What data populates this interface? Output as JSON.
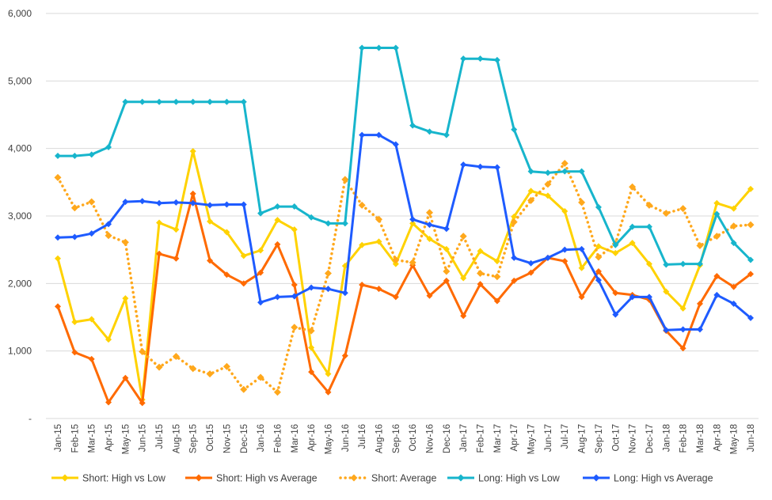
{
  "chart_data": {
    "type": "line",
    "title": "",
    "xlabel": "",
    "ylabel": "",
    "ylim": [
      0,
      6000
    ],
    "yticks": [
      0,
      1000,
      2000,
      3000,
      4000,
      5000,
      6000
    ],
    "ytick_labels": [
      "-",
      "1,000",
      "2,000",
      "3,000",
      "4,000",
      "5,000",
      "6,000"
    ],
    "grid": true,
    "legend_position": "bottom",
    "categories": [
      "Jan-15",
      "Feb-15",
      "Mar-15",
      "Apr-15",
      "May-15",
      "Jun-15",
      "Jul-15",
      "Aug-15",
      "Sep-15",
      "Oct-15",
      "Nov-15",
      "Dec-15",
      "Jan-16",
      "Feb-16",
      "Mar-16",
      "Apr-16",
      "May-16",
      "Jun-16",
      "Jul-16",
      "Aug-16",
      "Sep-16",
      "Oct-16",
      "Nov-16",
      "Dec-16",
      "Jan-17",
      "Feb-17",
      "Mar-17",
      "Apr-17",
      "May-17",
      "Jun-17",
      "Jul-17",
      "Aug-17",
      "Sep-17",
      "Oct-17",
      "Nov-17",
      "Dec-17",
      "Jan-18",
      "Feb-18",
      "Mar-18",
      "Apr-18",
      "May-18",
      "Jun-18"
    ],
    "series": [
      {
        "name": "Short: High vs Low",
        "color": "#FFD200",
        "style": "solid",
        "values": [
          2370,
          1430,
          1470,
          1170,
          1780,
          280,
          2900,
          2800,
          3960,
          2920,
          2760,
          2410,
          2490,
          2940,
          2800,
          1050,
          660,
          2260,
          2570,
          2620,
          2290,
          2890,
          2660,
          2510,
          2080,
          2480,
          2330,
          2990,
          3370,
          3300,
          3070,
          2230,
          2550,
          2450,
          2600,
          2290,
          1880,
          1630,
          2270,
          3190,
          3110,
          3400
        ]
      },
      {
        "name": "Short: High vs Average",
        "color": "#FF6A00",
        "style": "solid",
        "values": [
          1660,
          980,
          880,
          240,
          600,
          230,
          2440,
          2370,
          3330,
          2340,
          2130,
          2000,
          2160,
          2580,
          1980,
          690,
          390,
          930,
          1980,
          1920,
          1800,
          2270,
          1820,
          2040,
          1520,
          1990,
          1740,
          2040,
          2160,
          2380,
          2330,
          1800,
          2180,
          1860,
          1830,
          1760,
          1300,
          1040,
          1700,
          2110,
          1950,
          2140
        ]
      },
      {
        "name": "Short: Average",
        "color": "#FFA81C",
        "style": "dotted",
        "values": [
          3570,
          3120,
          3210,
          2710,
          2610,
          990,
          760,
          920,
          740,
          660,
          770,
          430,
          610,
          390,
          1350,
          1300,
          2150,
          3540,
          3160,
          2950,
          2350,
          2310,
          3050,
          2180,
          2700,
          2150,
          2100,
          2910,
          3230,
          3470,
          3780,
          3200,
          2390,
          2590,
          3430,
          3160,
          3040,
          3110,
          2560,
          2700,
          2850,
          2870
        ]
      },
      {
        "name": "Long: High vs Low",
        "color": "#17B5CC",
        "style": "solid",
        "values": [
          3890,
          3890,
          3910,
          4020,
          4690,
          4690,
          4690,
          4690,
          4690,
          4690,
          4690,
          4690,
          3040,
          3140,
          3140,
          2980,
          2890,
          2890,
          5490,
          5490,
          5490,
          4340,
          4250,
          4200,
          5330,
          5330,
          5310,
          4280,
          3660,
          3640,
          3660,
          3660,
          3130,
          2570,
          2840,
          2840,
          2280,
          2290,
          2290,
          3030,
          2600,
          2350
        ]
      },
      {
        "name": "Long: High vs Average",
        "color": "#1E5BFF",
        "style": "solid",
        "values": [
          2680,
          2690,
          2740,
          2880,
          3210,
          3220,
          3190,
          3200,
          3190,
          3160,
          3170,
          3170,
          1720,
          1800,
          1810,
          1940,
          1920,
          1860,
          4200,
          4200,
          4060,
          2950,
          2870,
          2810,
          3760,
          3730,
          3720,
          2380,
          2300,
          2380,
          2500,
          2510,
          2050,
          1540,
          1800,
          1800,
          1310,
          1320,
          1320,
          1830,
          1700,
          1490
        ]
      }
    ]
  }
}
